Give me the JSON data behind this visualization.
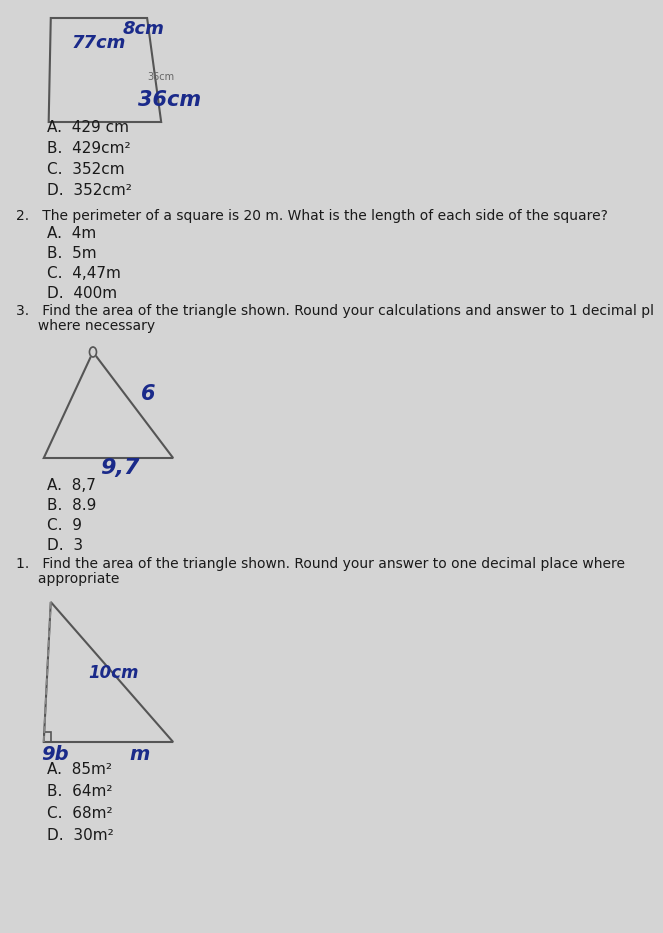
{
  "bg_color": "#d4d4d4",
  "q1_options": [
    "A.  429 cm",
    "B.  429cm²",
    "C.  352cm",
    "D.  352cm²"
  ],
  "q2_text": "2.   The perimeter of a square is 20 m. What is the length of each side of the square?",
  "q2_options": [
    "A.  4m",
    "B.  5m",
    "C.  4,47m",
    "D.  400m"
  ],
  "q3_text1": "3.   Find the area of the triangle shown. Round your calculations and answer to 1 decimal pl",
  "q3_text2": "     where necessary",
  "triangle1_label_6": "6",
  "triangle1_label_97": "9,7",
  "q3_options": [
    "A.  8,7",
    "B.  8.9",
    "C.  9",
    "D.  3"
  ],
  "q4_text1": "1.   Find the area of the triangle shown. Round your answer to one decimal place where",
  "q4_text2": "     appropriate",
  "triangle2_label_10cm": "10cm",
  "triangle2_label_9b": "9b",
  "triangle2_label_m": "m",
  "q4_options": [
    "A.  85m²",
    "B.  64m²",
    "C.  68m²",
    "D.  30m²"
  ],
  "shape1_label_77cm": "77cm",
  "shape1_label_8cm": "8cm",
  "shape1_label_36cm_small": "36cm",
  "shape1_label_36cm_big": "36cm",
  "text_color": "#1a1a1a",
  "shape_line_color": "#555555",
  "handwritten_color": "#1a2a8a"
}
